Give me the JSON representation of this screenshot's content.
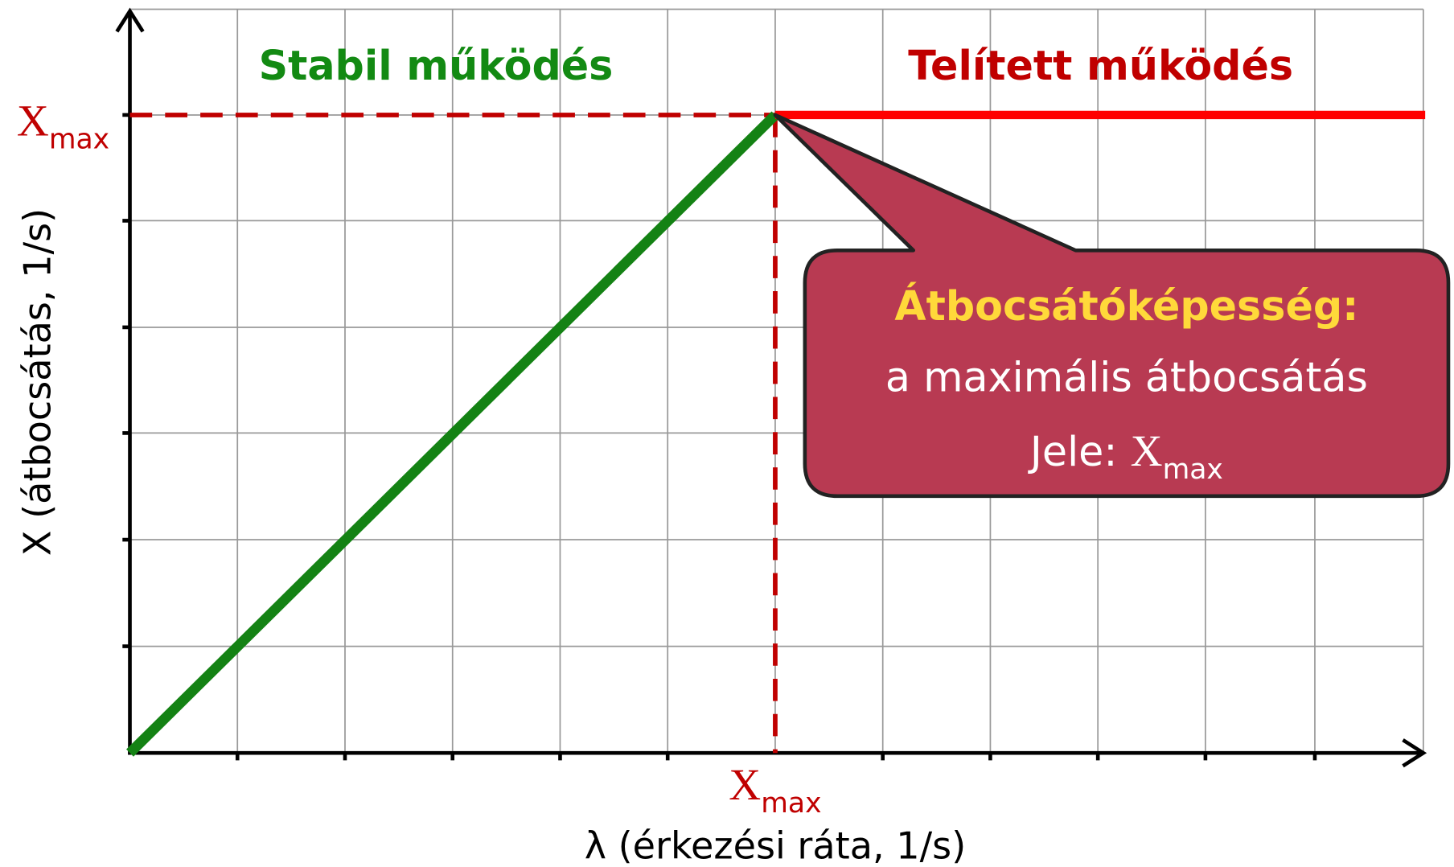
{
  "regions": {
    "stable": "Stabil működés",
    "saturated": "Telített működés"
  },
  "y_axis": {
    "label": "X (átbocsátás, 1/s)",
    "marker": {
      "symbol": "X",
      "subscript": "max"
    }
  },
  "x_axis": {
    "label": "λ (érkezési ráta, 1/s)",
    "marker": {
      "symbol": "X",
      "subscript": "max"
    }
  },
  "callout": {
    "title": "Átbocsátóképesség:",
    "line1": "a maximális átbocsátás",
    "line2_prefix": "Jele: ",
    "symbol": "X",
    "subscript": "max"
  }
}
